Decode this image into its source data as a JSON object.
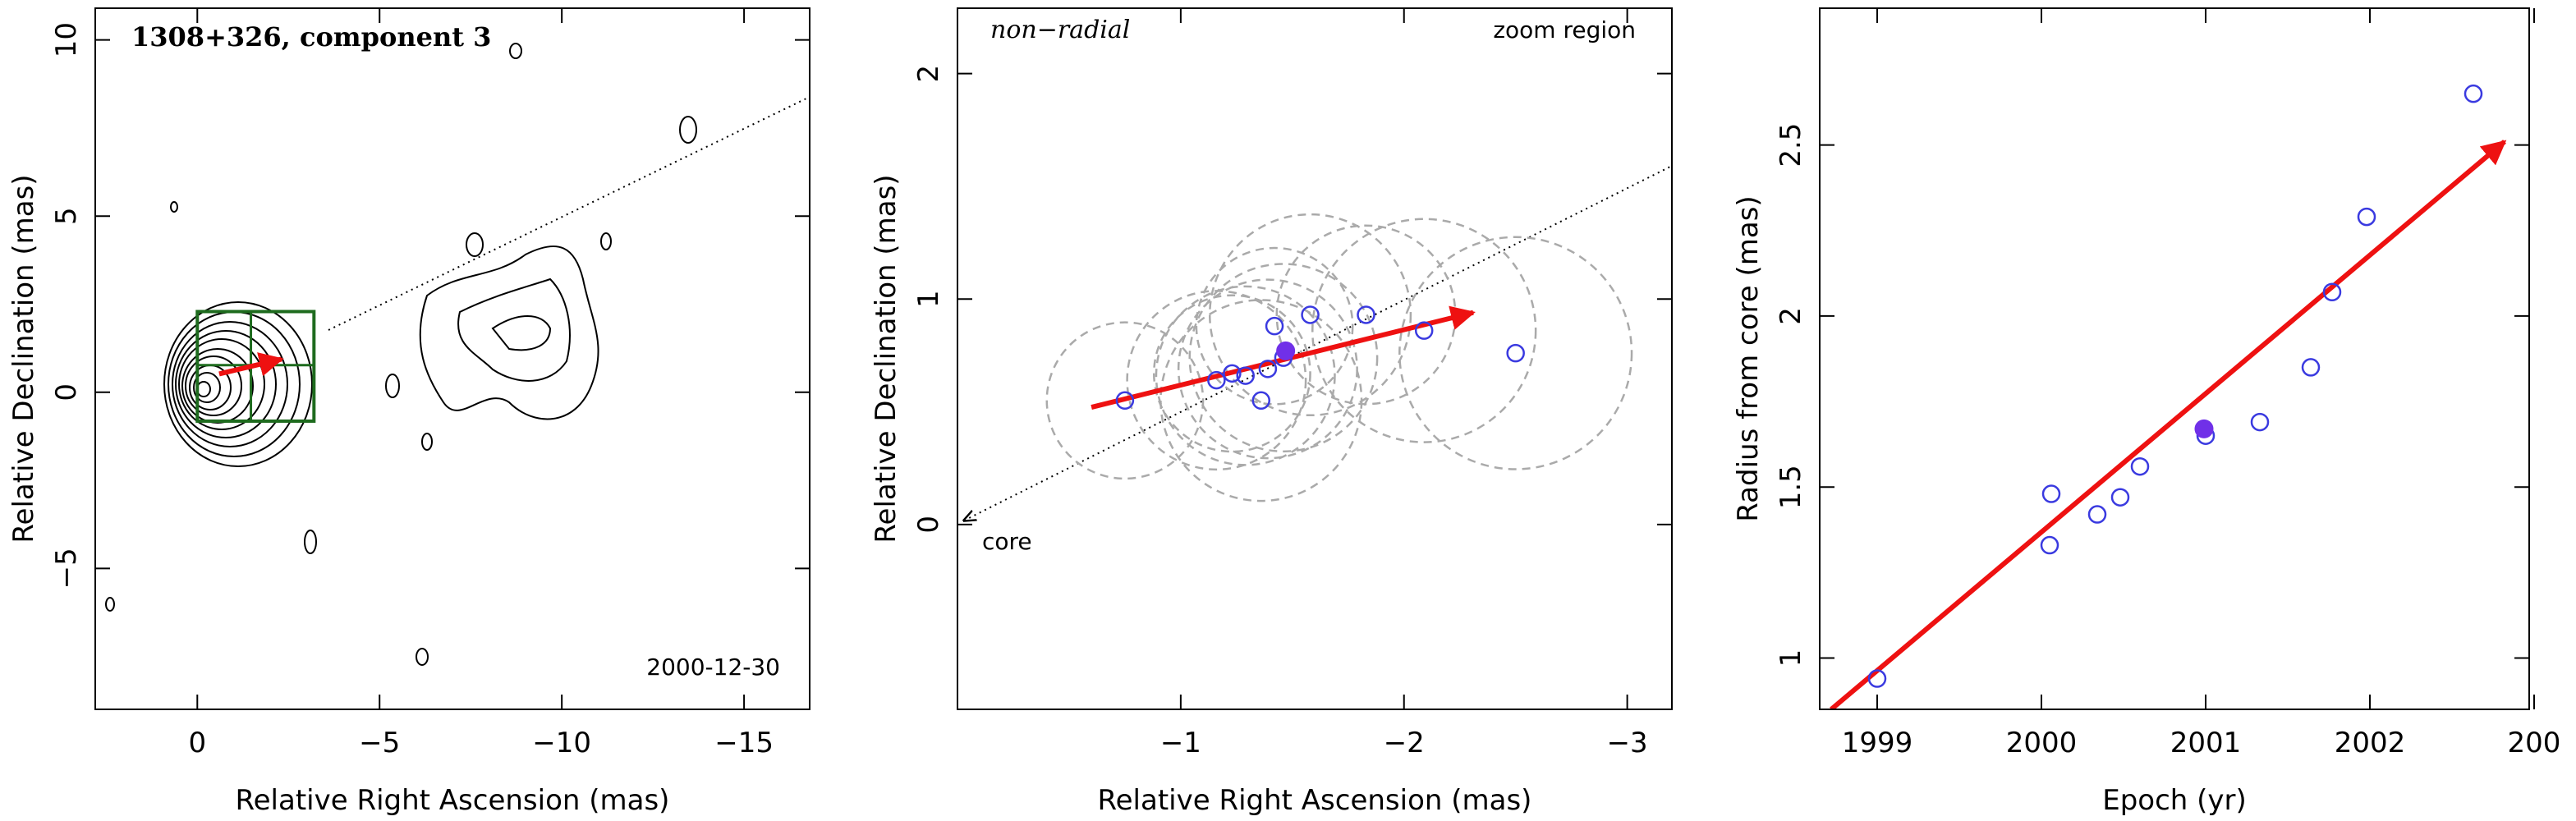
{
  "chart_data": [
    {
      "type": "map",
      "title": "1308+326, component 3",
      "annotation": "2000-12-30",
      "xlabel": "Relative Right Ascension (mas)",
      "ylabel": "Relative Declination (mas)",
      "xlim": [
        2.8,
        -16.8
      ],
      "ylim": [
        -9.0,
        10.9
      ],
      "xticks": [
        0,
        {
          "value": -5,
          "label": "−5"
        },
        {
          "value": -10,
          "label": "−10"
        },
        {
          "value": -15,
          "label": "−15"
        }
      ],
      "yticks": [
        {
          "value": -5,
          "label": "−5"
        },
        0,
        5,
        10
      ],
      "box_color": "#1e6b1e"
    },
    {
      "type": "scatter",
      "title": "non−radial",
      "annotation": "zoom region",
      "origin_label": "core",
      "xlabel": "Relative Right Ascension (mas)",
      "ylabel": "Relative Declination (mas)",
      "xlim": [
        0,
        -3.2
      ],
      "ylim": [
        -0.82,
        2.29
      ],
      "xticks": [
        {
          "value": -1,
          "label": "−1"
        },
        {
          "value": -2,
          "label": "−2"
        },
        {
          "value": -3,
          "label": "−3"
        }
      ],
      "yticks": [
        0,
        1,
        2
      ],
      "x": [
        -0.75,
        -1.16,
        -1.23,
        -1.29,
        -1.36,
        -1.39,
        -1.42,
        -1.46,
        -1.58,
        -1.83,
        -2.09,
        -2.5
      ],
      "values": [
        0.55,
        0.64,
        0.67,
        0.66,
        0.55,
        0.69,
        0.88,
        0.74,
        0.93,
        0.93,
        0.86,
        0.76
      ],
      "sizes": [
        0.35,
        0.4,
        0.35,
        0.4,
        0.45,
        0.4,
        0.35,
        0.42,
        0.45,
        0.4,
        0.5,
        0.52
      ],
      "color": "#3a3ae0",
      "size_color": "#aaaaaa",
      "highlight": {
        "x": -1.47,
        "y": 0.77,
        "color": "#7030e8"
      },
      "arrow": {
        "x": [
          -0.6,
          -2.31
        ],
        "y": [
          0.52,
          0.94
        ],
        "color": "#ee1111"
      }
    },
    {
      "type": "scatter",
      "xlabel": "Epoch (yr)",
      "ylabel": "Radius from core (mas)",
      "xlim": [
        1998.65,
        2002.97
      ],
      "ylim": [
        0.85,
        2.9
      ],
      "xticks": [
        1999,
        2000,
        2001,
        2002,
        {
          "value": 2003,
          "label": "200"
        }
      ],
      "yticks": [
        1,
        1.5,
        2,
        2.5
      ],
      "x": [
        1999.0,
        2000.05,
        2000.06,
        2000.34,
        2000.48,
        2000.6,
        2001.0,
        2001.33,
        2001.64,
        2001.77,
        2001.98,
        2002.63
      ],
      "values": [
        0.94,
        1.33,
        1.48,
        1.42,
        1.47,
        1.56,
        1.65,
        1.69,
        1.85,
        2.07,
        2.29,
        2.65
      ],
      "color": "#3a3ae0",
      "highlight": {
        "x": 2000.99,
        "y": 1.67,
        "color": "#7030e8"
      },
      "arrow": {
        "x": [
          1998.72,
          2002.82
        ],
        "y": [
          0.85,
          2.51
        ],
        "color": "#ee1111"
      }
    }
  ]
}
